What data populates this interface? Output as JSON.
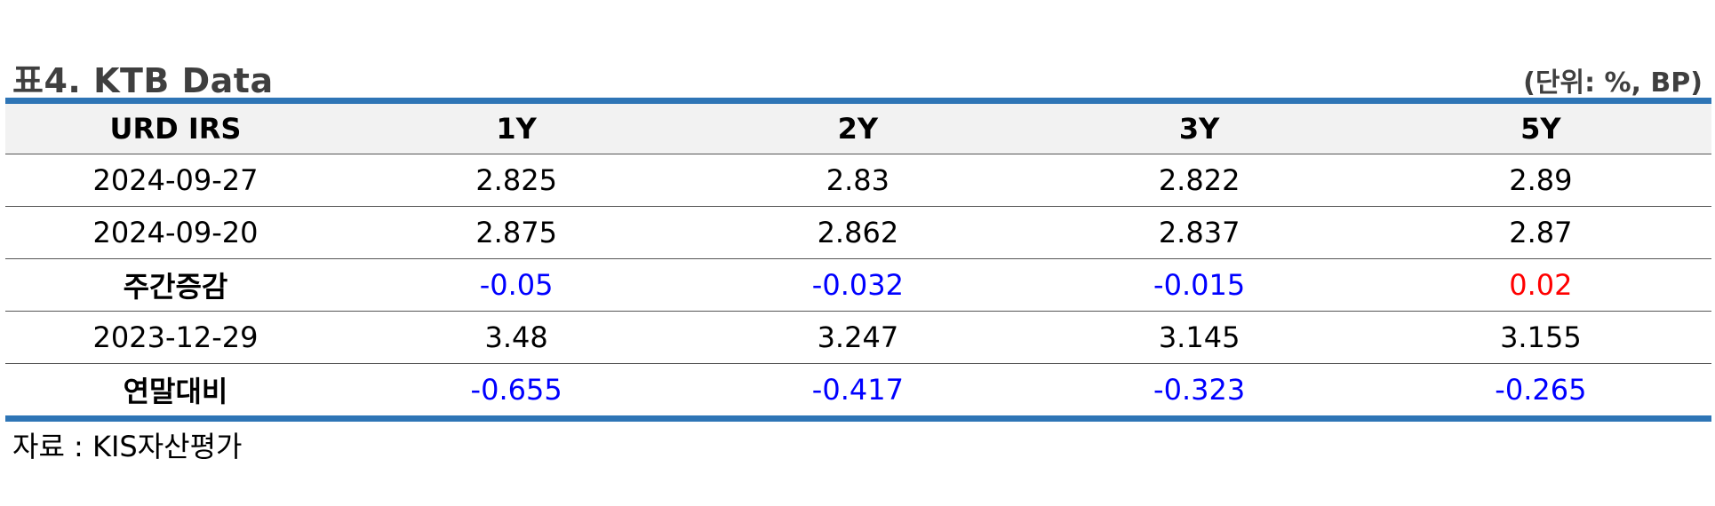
{
  "title": "표4. KTB Data",
  "unit": "(단위: %, BP)",
  "table": {
    "headers": [
      "URD IRS",
      "1Y",
      "2Y",
      "3Y",
      "5Y"
    ],
    "rows": [
      {
        "label": "2024-09-27",
        "bold": false,
        "values": [
          "2.825",
          "2.83",
          "2.822",
          "2.89"
        ],
        "tones": [
          "",
          "",
          "",
          ""
        ]
      },
      {
        "label": "2024-09-20",
        "bold": false,
        "values": [
          "2.875",
          "2.862",
          "2.837",
          "2.87"
        ],
        "tones": [
          "",
          "",
          "",
          ""
        ]
      },
      {
        "label": "주간증감",
        "bold": true,
        "values": [
          "-0.05",
          "-0.032",
          "-0.015",
          "0.02"
        ],
        "tones": [
          "neg",
          "neg",
          "neg",
          "pos"
        ]
      },
      {
        "label": "2023-12-29",
        "bold": false,
        "values": [
          "3.48",
          "3.247",
          "3.145",
          "3.155"
        ],
        "tones": [
          "",
          "",
          "",
          ""
        ]
      },
      {
        "label": "연말대비",
        "bold": true,
        "values": [
          "-0.655",
          "-0.417",
          "-0.323",
          "-0.265"
        ],
        "tones": [
          "neg",
          "neg",
          "neg",
          "neg"
        ]
      }
    ]
  },
  "source": "자료 : KIS자산평가",
  "colors": {
    "rule": "#2e75b6",
    "header_bg": "#f2f2f2",
    "negative": "#0000ff",
    "positive": "#ff0000"
  }
}
